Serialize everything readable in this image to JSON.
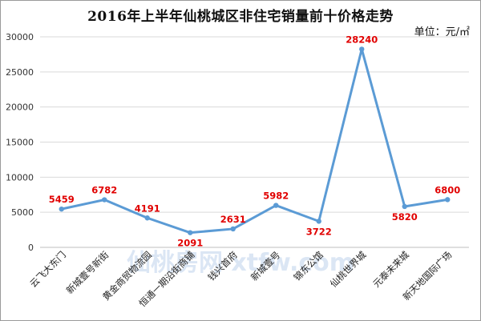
{
  "chart_data": {
    "type": "line",
    "title": "2016年上半年仙桃城区非住宅销量前十价格走势",
    "unit_label": "单位：元/㎡",
    "categories": [
      "云飞大东门",
      "新城壹号新街",
      "黄金商贸物流园",
      "恒通一期沿街商铺",
      "钱兴首府",
      "新城壹号",
      "锦东公馆",
      "仙桃世界城",
      "元泰未来城",
      "新天地国际广场"
    ],
    "series": [
      {
        "values": [
          5459,
          6782,
          4191,
          2091,
          2631,
          5982,
          3722,
          28240,
          5820,
          6800
        ]
      }
    ],
    "ylim": [
      0,
      30000
    ],
    "yticks": [
      "0",
      "5000",
      "10000",
      "15000",
      "20000",
      "25000",
      "30000"
    ],
    "grid": true,
    "colors": {
      "line": "#5b9bd5",
      "label": "#e10000",
      "grid": "#d9d9d9"
    }
  },
  "watermark": "仙桃房网 xtfw.com"
}
